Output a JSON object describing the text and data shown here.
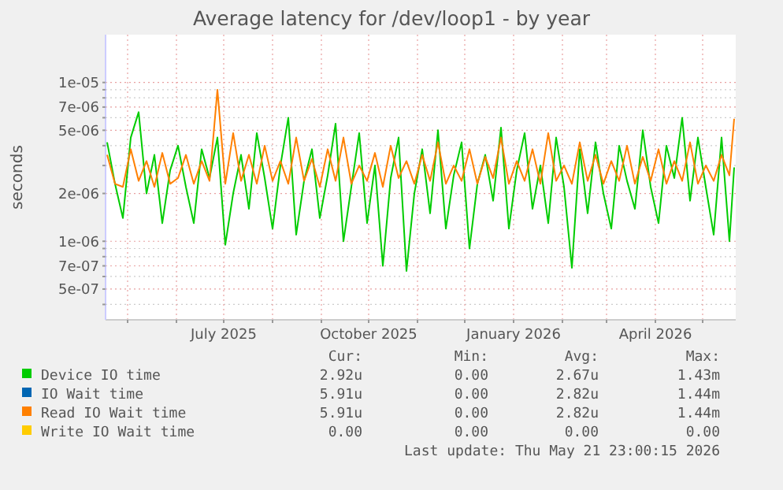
{
  "chart_data": {
    "type": "line",
    "title": "Average latency for /dev/loop1 - by year",
    "ylabel": "seconds",
    "log": true,
    "grid": true,
    "legend": "bottom",
    "marker": "none",
    "line_style": "solid",
    "xlim": [
      "2025-04-17",
      "2026-05-22"
    ],
    "xticks": [
      {
        "value": "2025-05-01",
        "label": null
      },
      {
        "value": "2025-06-01",
        "label": null
      },
      {
        "value": "2025-07-01",
        "label": "July 2025"
      },
      {
        "value": "2025-08-01",
        "label": null
      },
      {
        "value": "2025-09-01",
        "label": null
      },
      {
        "value": "2025-10-01",
        "label": "October 2025"
      },
      {
        "value": "2025-11-01",
        "label": null
      },
      {
        "value": "2025-12-01",
        "label": null
      },
      {
        "value": "2026-01-01",
        "label": "January 2026"
      },
      {
        "value": "2026-02-01",
        "label": null
      },
      {
        "value": "2026-03-01",
        "label": null
      },
      {
        "value": "2026-04-01",
        "label": "April 2026"
      },
      {
        "value": "2026-05-01",
        "label": null
      }
    ],
    "ylim": [
      3.2e-07,
      2e-05
    ],
    "yticks": [
      {
        "value": 4e-07,
        "label": null
      },
      {
        "value": 5e-07,
        "label": "5e-07"
      },
      {
        "value": 6e-07,
        "label": null
      },
      {
        "value": 7e-07,
        "label": "7e-07"
      },
      {
        "value": 8e-07,
        "label": null
      },
      {
        "value": 9e-07,
        "label": null
      },
      {
        "value": 1e-06,
        "label": "1e-06"
      },
      {
        "value": 2e-06,
        "label": "2e-06"
      },
      {
        "value": 3e-06,
        "label": null
      },
      {
        "value": 4e-06,
        "label": null
      },
      {
        "value": 5e-06,
        "label": "5e-06"
      },
      {
        "value": 6e-06,
        "label": null
      },
      {
        "value": 7e-06,
        "label": "7e-06"
      },
      {
        "value": 8e-06,
        "label": null
      },
      {
        "value": 9e-06,
        "label": null
      },
      {
        "value": 1e-05,
        "label": "1e-05"
      }
    ],
    "x": [
      "2025-04-18",
      "2025-04-23",
      "2025-04-28",
      "2025-05-03",
      "2025-05-08",
      "2025-05-13",
      "2025-05-18",
      "2025-05-23",
      "2025-05-28",
      "2025-06-02",
      "2025-06-07",
      "2025-06-12",
      "2025-06-17",
      "2025-06-22",
      "2025-06-27",
      "2025-07-02",
      "2025-07-07",
      "2025-07-12",
      "2025-07-17",
      "2025-07-22",
      "2025-07-27",
      "2025-08-01",
      "2025-08-06",
      "2025-08-11",
      "2025-08-16",
      "2025-08-21",
      "2025-08-26",
      "2025-08-31",
      "2025-09-05",
      "2025-09-10",
      "2025-09-15",
      "2025-09-20",
      "2025-09-25",
      "2025-09-30",
      "2025-10-05",
      "2025-10-10",
      "2025-10-15",
      "2025-10-20",
      "2025-10-25",
      "2025-10-30",
      "2025-11-04",
      "2025-11-09",
      "2025-11-14",
      "2025-11-19",
      "2025-11-24",
      "2025-11-29",
      "2025-12-04",
      "2025-12-09",
      "2025-12-14",
      "2025-12-19",
      "2025-12-24",
      "2025-12-29",
      "2026-01-03",
      "2026-01-08",
      "2026-01-13",
      "2026-01-18",
      "2026-01-23",
      "2026-01-28",
      "2026-02-02",
      "2026-02-07",
      "2026-02-12",
      "2026-02-17",
      "2026-02-22",
      "2026-02-27",
      "2026-03-04",
      "2026-03-09",
      "2026-03-14",
      "2026-03-19",
      "2026-03-24",
      "2026-03-29",
      "2026-04-03",
      "2026-04-08",
      "2026-04-13",
      "2026-04-18",
      "2026-04-23",
      "2026-04-28",
      "2026-05-03",
      "2026-05-08",
      "2026-05-13",
      "2026-05-18",
      "2026-05-21"
    ],
    "series": [
      {
        "name": "Device IO time",
        "color": "#00cc00",
        "values": [
          4.2e-06,
          2.3e-06,
          1.4e-06,
          4.5e-06,
          6.5e-06,
          2e-06,
          3.5e-06,
          1.3e-06,
          2.8e-06,
          4e-06,
          2.2e-06,
          1.3e-06,
          3.8e-06,
          2.5e-06,
          4.5e-06,
          9.5e-07,
          2e-06,
          3.5e-06,
          1.6e-06,
          4.8e-06,
          2.5e-06,
          1.2e-06,
          3e-06,
          6e-06,
          1.1e-06,
          2.4e-06,
          3.8e-06,
          1.4e-06,
          2.6e-06,
          5.5e-06,
          1e-06,
          2.2e-06,
          4.8e-06,
          1.3e-06,
          3e-06,
          7e-07,
          2.5e-06,
          4.5e-06,
          6.5e-07,
          2e-06,
          3.8e-06,
          1.5e-06,
          5e-06,
          1.2e-06,
          2.6e-06,
          4.2e-06,
          9e-07,
          2.3e-06,
          3.5e-06,
          1.8e-06,
          5.2e-06,
          1.2e-06,
          2.8e-06,
          4.8e-06,
          1.6e-06,
          3e-06,
          1.3e-06,
          4.5e-06,
          2.2e-06,
          6.8e-07,
          3.8e-06,
          1.5e-06,
          4.2e-06,
          2e-06,
          1.2e-06,
          4e-06,
          2.4e-06,
          1.6e-06,
          5e-06,
          2.2e-06,
          1.3e-06,
          4e-06,
          2.5e-06,
          6e-06,
          1.8e-06,
          4.5e-06,
          2.2e-06,
          1.1e-06,
          4.5e-06,
          1e-06,
          2.92e-06
        ]
      },
      {
        "name": "IO Wait time",
        "color": "#0066b3",
        "values": [
          null,
          null,
          null,
          null,
          null,
          null,
          null,
          null,
          null,
          null,
          null,
          null,
          null,
          null,
          null,
          null,
          null,
          null,
          null,
          null,
          null,
          null,
          null,
          null,
          null,
          null,
          null,
          null,
          null,
          null,
          null,
          null,
          null,
          null,
          null,
          null,
          null,
          null,
          null,
          null,
          null,
          null,
          null,
          null,
          null,
          null,
          null,
          null,
          null,
          null,
          null,
          null,
          null,
          null,
          null,
          null,
          null,
          null,
          null,
          null,
          null,
          null,
          null,
          null,
          null,
          null,
          null,
          null,
          null,
          null,
          null,
          null,
          null,
          null,
          null,
          null,
          null,
          null,
          null,
          null,
          null
        ]
      },
      {
        "name": "Read IO Wait time",
        "color": "#ff8000",
        "values": [
          3.5e-06,
          2.3e-06,
          2.2e-06,
          3.8e-06,
          2.4e-06,
          3.2e-06,
          2.2e-06,
          3.6e-06,
          2.3e-06,
          2.5e-06,
          3.5e-06,
          2.3e-06,
          3.2e-06,
          2.4e-06,
          9e-06,
          2.3e-06,
          4.8e-06,
          2.4e-06,
          3.5e-06,
          2.3e-06,
          4e-06,
          2.4e-06,
          3.2e-06,
          2.3e-06,
          4.5e-06,
          2.4e-06,
          3.3e-06,
          2.2e-06,
          3.8e-06,
          2.4e-06,
          4.5e-06,
          2.3e-06,
          3e-06,
          2.4e-06,
          3.6e-06,
          2.2e-06,
          4e-06,
          2.5e-06,
          3.2e-06,
          2.3e-06,
          3.5e-06,
          2.4e-06,
          4.2e-06,
          2.3e-06,
          3e-06,
          2.4e-06,
          3.8e-06,
          2.3e-06,
          3.4e-06,
          2.5e-06,
          4.5e-06,
          2.3e-06,
          3.2e-06,
          2.4e-06,
          3.8e-06,
          2.3e-06,
          4.8e-06,
          2.4e-06,
          3e-06,
          2.3e-06,
          4.2e-06,
          2.4e-06,
          3.5e-06,
          2.3e-06,
          3.2e-06,
          2.4e-06,
          4e-06,
          2.3e-06,
          3.4e-06,
          2.4e-06,
          3.8e-06,
          2.3e-06,
          3.2e-06,
          2.4e-06,
          4.2e-06,
          2.3e-06,
          3e-06,
          2.4e-06,
          3.5e-06,
          2.6e-06,
          5.91e-06
        ]
      },
      {
        "name": "Write IO Wait time",
        "color": "#ffcc00",
        "values": [
          null,
          null,
          null,
          null,
          null,
          null,
          null,
          null,
          null,
          null,
          null,
          null,
          null,
          null,
          null,
          null,
          null,
          null,
          null,
          null,
          null,
          null,
          null,
          null,
          null,
          null,
          null,
          null,
          null,
          null,
          null,
          null,
          null,
          null,
          null,
          null,
          null,
          null,
          null,
          null,
          null,
          null,
          null,
          null,
          null,
          null,
          null,
          null,
          null,
          null,
          null,
          null,
          null,
          null,
          null,
          null,
          null,
          null,
          null,
          null,
          null,
          null,
          null,
          null,
          null,
          null,
          null,
          null,
          null,
          null,
          null,
          null,
          null,
          null,
          null,
          null,
          null,
          null,
          null,
          null,
          null
        ]
      }
    ],
    "annotations": [
      "Cur:",
      "Min:",
      "Avg:",
      "Max:",
      "2.92u",
      "0.00",
      "2.67u",
      "1.43m",
      "5.91u",
      "0.00",
      "2.82u",
      "1.44m",
      "5.91u",
      "0.00",
      "2.82u",
      "1.44m",
      "0.00",
      "0.00",
      "0.00",
      "0.00",
      "Last update: Thu May 21 23:00:15 2026"
    ]
  }
}
